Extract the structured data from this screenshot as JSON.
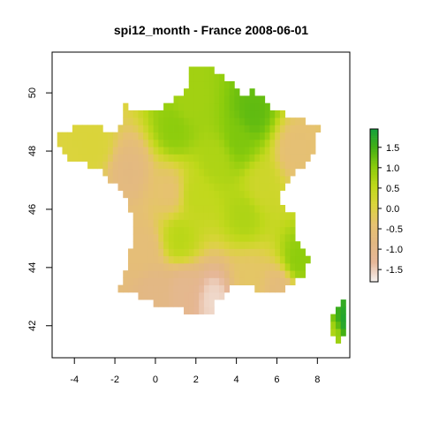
{
  "chart_data": {
    "type": "heatmap",
    "title": "spi12_month - France 2008-06-01",
    "xlabel": "",
    "ylabel": "",
    "xlim": [
      -5.1,
      9.6
    ],
    "ylim": [
      40.9,
      51.4
    ],
    "x_ticks": [
      "-4",
      "-2",
      "0",
      "2",
      "4",
      "6",
      "8"
    ],
    "x_tick_values": [
      -4,
      -2,
      0,
      2,
      4,
      6,
      8
    ],
    "y_ticks": [
      "42",
      "44",
      "46",
      "48",
      "50"
    ],
    "y_tick_values": [
      42,
      44,
      46,
      48,
      50
    ],
    "grid": false,
    "legend_position": "right",
    "colorbar": {
      "min": -1.8,
      "max": 1.95,
      "ticks": [
        "1.5",
        "1.0",
        "0.5",
        "0.0",
        "-0.5",
        "-1.0",
        "-1.5"
      ],
      "tick_values": [
        1.5,
        1.0,
        0.5,
        0.0,
        -0.5,
        -1.0,
        -1.5
      ],
      "colors": [
        "#f7f2f0",
        "#e6b799",
        "#e3b883",
        "#e6c270",
        "#dbd43c",
        "#bfd81a",
        "#8bcc0c",
        "#44b014",
        "#14a03c"
      ]
    },
    "cell_size_deg": 0.25,
    "regions": [
      {
        "name": "mainland-france",
        "outline": [
          [
            -4.8,
            48.7
          ],
          [
            -3.5,
            48.85
          ],
          [
            -1.8,
            48.7
          ],
          [
            -1.5,
            49.7
          ],
          [
            -1.2,
            49.4
          ],
          [
            0.2,
            49.4
          ],
          [
            1.5,
            50.1
          ],
          [
            1.8,
            51.0
          ],
          [
            2.6,
            51.0
          ],
          [
            3.6,
            50.4
          ],
          [
            4.3,
            49.95
          ],
          [
            4.9,
            50.1
          ],
          [
            5.8,
            49.5
          ],
          [
            6.5,
            49.2
          ],
          [
            7.6,
            49.0
          ],
          [
            8.2,
            48.95
          ],
          [
            7.9,
            48.3
          ],
          [
            7.6,
            47.6
          ],
          [
            6.9,
            47.4
          ],
          [
            6.5,
            46.9
          ],
          [
            6.1,
            46.3
          ],
          [
            6.9,
            45.7
          ],
          [
            7.0,
            44.9
          ],
          [
            7.6,
            44.2
          ],
          [
            7.3,
            43.7
          ],
          [
            6.0,
            43.1
          ],
          [
            4.8,
            43.3
          ],
          [
            3.8,
            43.3
          ],
          [
            3.0,
            42.8
          ],
          [
            2.8,
            42.4
          ],
          [
            1.5,
            42.5
          ],
          [
            0.0,
            42.7
          ],
          [
            -1.8,
            43.3
          ],
          [
            -1.3,
            44.2
          ],
          [
            -1.1,
            45.5
          ],
          [
            -1.3,
            46.2
          ],
          [
            -2.2,
            47.0
          ],
          [
            -2.8,
            47.4
          ],
          [
            -4.4,
            47.8
          ],
          [
            -4.8,
            48.2
          ]
        ]
      },
      {
        "name": "corsica",
        "outline": [
          [
            8.6,
            42.3
          ],
          [
            8.7,
            41.6
          ],
          [
            9.1,
            41.4
          ],
          [
            9.5,
            41.9
          ],
          [
            9.5,
            42.7
          ],
          [
            9.3,
            43.0
          ],
          [
            8.9,
            42.6
          ]
        ]
      }
    ],
    "spi_field_samples": [
      {
        "lon": 1.0,
        "lat": 48.8,
        "value": 1.0
      },
      {
        "lon": 1.6,
        "lat": 49.6,
        "value": 0.8
      },
      {
        "lon": 4.8,
        "lat": 49.3,
        "value": 1.3
      },
      {
        "lon": 4.1,
        "lat": 48.4,
        "value": 1.1
      },
      {
        "lon": 3.0,
        "lat": 47.7,
        "value": 0.7
      },
      {
        "lon": 2.0,
        "lat": 46.5,
        "value": 0.5
      },
      {
        "lon": 4.4,
        "lat": 45.8,
        "value": 0.7
      },
      {
        "lon": 1.2,
        "lat": 45.0,
        "value": 0.6
      },
      {
        "lon": 7.0,
        "lat": 44.2,
        "value": 1.0
      },
      {
        "lon": 5.3,
        "lat": 46.8,
        "value": 0.3
      },
      {
        "lon": 6.9,
        "lat": 48.0,
        "value": -0.5
      },
      {
        "lon": 0.7,
        "lat": 46.6,
        "value": -0.4
      },
      {
        "lon": -3.0,
        "lat": 48.2,
        "value": 0.1
      },
      {
        "lon": -1.3,
        "lat": 47.3,
        "value": -0.8
      },
      {
        "lon": -0.6,
        "lat": 44.6,
        "value": -0.6
      },
      {
        "lon": 0.0,
        "lat": 43.2,
        "value": -0.9
      },
      {
        "lon": 1.4,
        "lat": 43.2,
        "value": -1.1
      },
      {
        "lon": 2.9,
        "lat": 42.9,
        "value": -1.6
      },
      {
        "lon": 4.6,
        "lat": 43.6,
        "value": -0.3
      },
      {
        "lon": 6.2,
        "lat": 43.3,
        "value": -0.7
      },
      {
        "lon": 9.3,
        "lat": 42.1,
        "value": 1.9
      },
      {
        "lon": 8.8,
        "lat": 41.8,
        "value": 0.6
      }
    ]
  }
}
